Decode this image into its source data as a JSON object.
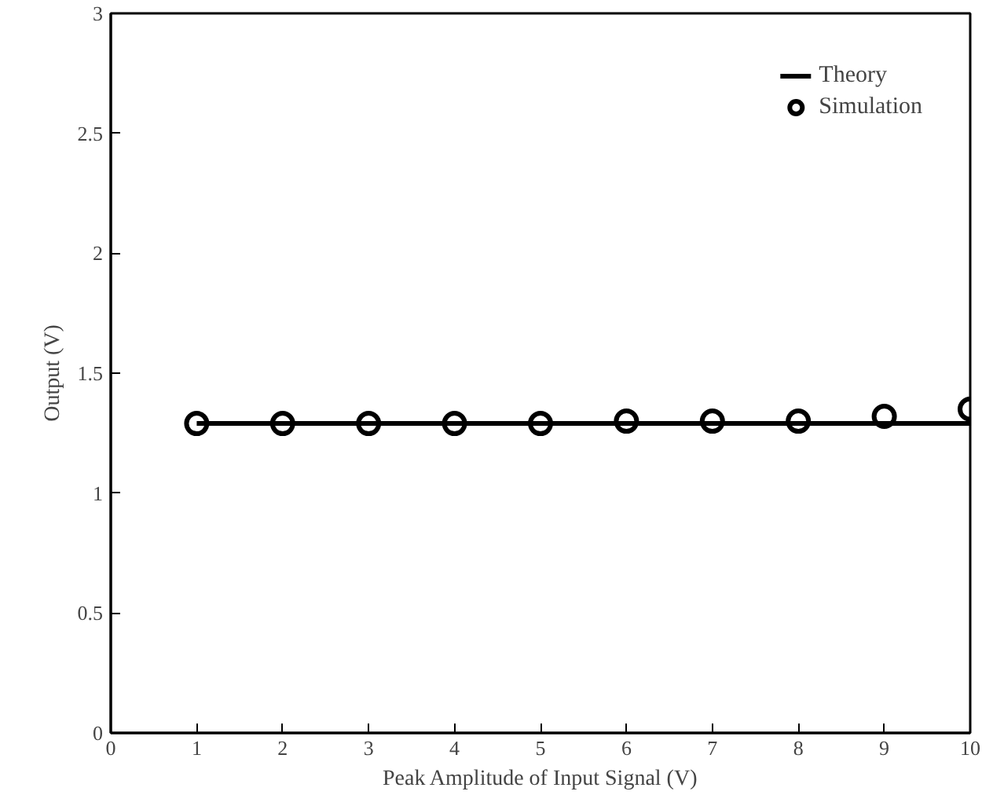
{
  "chart_data": {
    "type": "line",
    "xlabel": "Peak Amplitude of Input Signal (V)",
    "ylabel": "Output (V)",
    "x": [
      1,
      2,
      3,
      4,
      5,
      6,
      7,
      8,
      9,
      10
    ],
    "series": [
      {
        "name": "Theory",
        "color": "#000000",
        "x": [
          1,
          10
        ],
        "values": [
          1.29,
          1.29
        ]
      },
      {
        "name": "Simulation",
        "color": "#000000",
        "type": "scatter",
        "marker": "circle",
        "values": [
          1.29,
          1.29,
          1.29,
          1.29,
          1.29,
          1.3,
          1.3,
          1.3,
          1.32,
          1.35
        ]
      }
    ],
    "xlim": [
      0,
      10
    ],
    "ylim": [
      0,
      3
    ],
    "xticks": [
      0,
      1,
      2,
      3,
      4,
      5,
      6,
      7,
      8,
      9,
      10
    ],
    "yticks": [
      0,
      0.5,
      1,
      1.5,
      2,
      2.5,
      3
    ],
    "legend": "top right",
    "grid": false
  }
}
